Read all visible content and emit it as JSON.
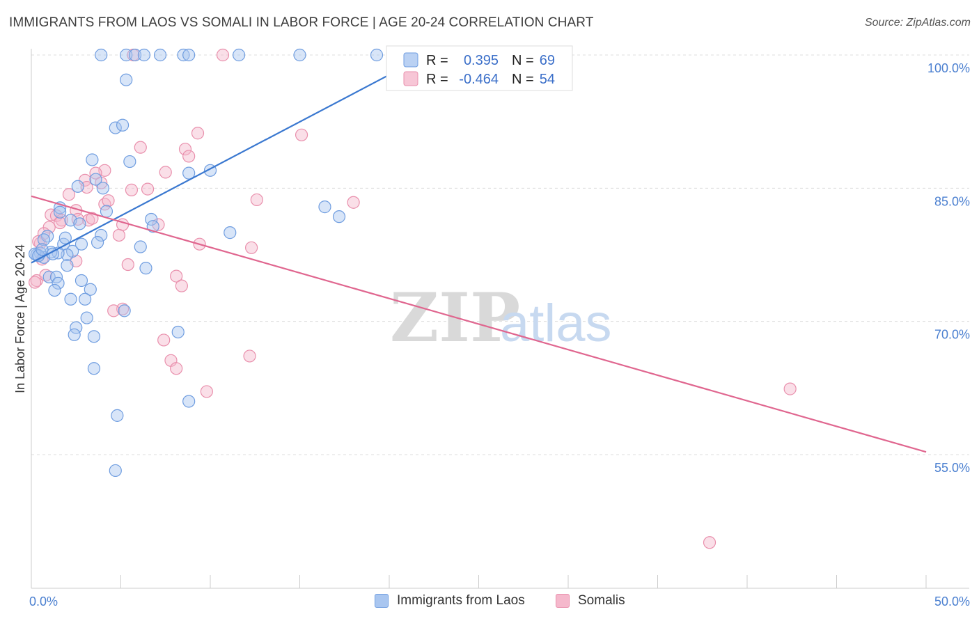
{
  "title": "IMMIGRANTS FROM LAOS VS SOMALI IN LABOR FORCE | AGE 20-24 CORRELATION CHART",
  "source": "Source: ZipAtlas.com",
  "watermark": {
    "zip": "ZIP",
    "atlas": "atlas"
  },
  "colors": {
    "blue_fill": "#a9c6f0",
    "blue_stroke": "#6f9de0",
    "blue_line": "#3a78d0",
    "pink_fill": "#f5b8cc",
    "pink_stroke": "#e98fac",
    "pink_line": "#e0668f",
    "grid": "#dcdcdc",
    "axis_label": "#4a7fd0"
  },
  "legend": {
    "rows": [
      {
        "r_label": "R =",
        "r_value": "0.395",
        "n_label": "N =",
        "n_value": "69"
      },
      {
        "r_label": "R =",
        "r_value": "-0.464",
        "n_label": "N =",
        "n_value": "54"
      }
    ]
  },
  "bottom_legend": {
    "series1": "Immigrants from Laos",
    "series2": "Somalis"
  },
  "chart_data": {
    "type": "scatter",
    "xlabel": "",
    "ylabel": "In Labor Force | Age 20-24",
    "xlim": [
      0,
      50
    ],
    "ylim": [
      40,
      102
    ],
    "x_tick_labels": [
      {
        "value": 0,
        "label": "0.0%"
      },
      {
        "value": 50,
        "label": "50.0%"
      }
    ],
    "y_tick_labels": [
      {
        "value": 100,
        "label": "100.0%"
      },
      {
        "value": 85,
        "label": "85.0%"
      },
      {
        "value": 70,
        "label": "70.0%"
      },
      {
        "value": 55,
        "label": "55.0%"
      }
    ],
    "series": [
      {
        "name": "Immigrants from Laos",
        "r": 0.395,
        "n": 69,
        "trend": {
          "x0": 0.0,
          "y0": 76.6,
          "x1": 20.5,
          "y1": 98.3
        },
        "points": [
          [
            3.9,
            100
          ],
          [
            5.3,
            100
          ],
          [
            5.8,
            100
          ],
          [
            6.3,
            100
          ],
          [
            7.2,
            100
          ],
          [
            8.5,
            100
          ],
          [
            8.8,
            100
          ],
          [
            11.6,
            100
          ],
          [
            15.0,
            100
          ],
          [
            19.3,
            100
          ],
          [
            5.3,
            97.2
          ],
          [
            4.7,
            91.8
          ],
          [
            5.1,
            92.1
          ],
          [
            3.4,
            88.2
          ],
          [
            5.5,
            88.0
          ],
          [
            8.8,
            86.7
          ],
          [
            10.0,
            87.0
          ],
          [
            3.6,
            86.0
          ],
          [
            2.6,
            85.2
          ],
          [
            4.0,
            85.0
          ],
          [
            4.2,
            82.4
          ],
          [
            1.6,
            82.8
          ],
          [
            1.6,
            82.3
          ],
          [
            2.2,
            81.4
          ],
          [
            2.7,
            81.0
          ],
          [
            6.7,
            81.5
          ],
          [
            6.8,
            80.7
          ],
          [
            11.1,
            80.0
          ],
          [
            16.4,
            82.9
          ],
          [
            17.2,
            81.8
          ],
          [
            3.9,
            79.7
          ],
          [
            3.7,
            78.9
          ],
          [
            2.8,
            78.7
          ],
          [
            1.8,
            78.7
          ],
          [
            1.9,
            79.4
          ],
          [
            0.9,
            79.6
          ],
          [
            0.7,
            79.2
          ],
          [
            6.1,
            78.4
          ],
          [
            2.3,
            77.9
          ],
          [
            2.0,
            77.5
          ],
          [
            1.5,
            77.7
          ],
          [
            1.1,
            77.8
          ],
          [
            0.5,
            77.7
          ],
          [
            0.3,
            77.5
          ],
          [
            0.7,
            77.2
          ],
          [
            2.0,
            76.3
          ],
          [
            6.4,
            76.0
          ],
          [
            1.0,
            75.0
          ],
          [
            1.4,
            75.0
          ],
          [
            1.5,
            74.3
          ],
          [
            2.8,
            74.6
          ],
          [
            3.3,
            73.6
          ],
          [
            1.3,
            73.5
          ],
          [
            2.2,
            72.5
          ],
          [
            3.0,
            72.5
          ],
          [
            5.2,
            71.2
          ],
          [
            3.1,
            70.4
          ],
          [
            2.5,
            69.3
          ],
          [
            8.2,
            68.8
          ],
          [
            2.4,
            68.5
          ],
          [
            3.5,
            68.3
          ],
          [
            3.5,
            64.7
          ],
          [
            8.8,
            61.0
          ],
          [
            4.8,
            59.4
          ],
          [
            4.7,
            53.2
          ],
          [
            0.2,
            77.6
          ],
          [
            0.4,
            77.4
          ],
          [
            1.2,
            77.6
          ],
          [
            0.6,
            78.1
          ]
        ]
      },
      {
        "name": "Somalis",
        "r": -0.464,
        "n": 54,
        "trend": {
          "x0": 0.0,
          "y0": 84.1,
          "x1": 50.0,
          "y1": 55.3
        },
        "points": [
          [
            5.7,
            100
          ],
          [
            10.7,
            100
          ],
          [
            9.3,
            91.2
          ],
          [
            15.1,
            91.0
          ],
          [
            6.1,
            89.6
          ],
          [
            8.6,
            89.4
          ],
          [
            8.8,
            88.6
          ],
          [
            4.1,
            87.0
          ],
          [
            3.6,
            86.7
          ],
          [
            7.5,
            86.8
          ],
          [
            3.0,
            85.9
          ],
          [
            3.9,
            85.6
          ],
          [
            3.1,
            85.1
          ],
          [
            5.6,
            84.8
          ],
          [
            6.5,
            84.9
          ],
          [
            2.1,
            84.3
          ],
          [
            4.1,
            83.2
          ],
          [
            4.3,
            83.6
          ],
          [
            12.6,
            83.7
          ],
          [
            18.0,
            83.4
          ],
          [
            2.5,
            82.5
          ],
          [
            1.1,
            82.0
          ],
          [
            1.4,
            81.9
          ],
          [
            2.6,
            81.5
          ],
          [
            3.2,
            81.4
          ],
          [
            3.4,
            81.6
          ],
          [
            1.7,
            81.4
          ],
          [
            1.6,
            81.1
          ],
          [
            5.1,
            80.9
          ],
          [
            7.1,
            80.9
          ],
          [
            1.0,
            80.6
          ],
          [
            0.7,
            79.9
          ],
          [
            4.9,
            79.7
          ],
          [
            0.5,
            78.8
          ],
          [
            9.4,
            78.7
          ],
          [
            12.3,
            78.3
          ],
          [
            2.5,
            76.8
          ],
          [
            5.4,
            76.4
          ],
          [
            8.1,
            75.1
          ],
          [
            8.4,
            74.0
          ],
          [
            0.3,
            74.6
          ],
          [
            0.2,
            74.4
          ],
          [
            5.1,
            71.4
          ],
          [
            4.6,
            71.2
          ],
          [
            7.4,
            67.9
          ],
          [
            7.8,
            65.6
          ],
          [
            8.1,
            64.7
          ],
          [
            12.2,
            66.1
          ],
          [
            9.8,
            62.1
          ],
          [
            42.4,
            62.4
          ],
          [
            37.9,
            45.1
          ],
          [
            0.6,
            77.0
          ],
          [
            0.4,
            79.0
          ],
          [
            0.8,
            75.2
          ]
        ]
      }
    ]
  }
}
